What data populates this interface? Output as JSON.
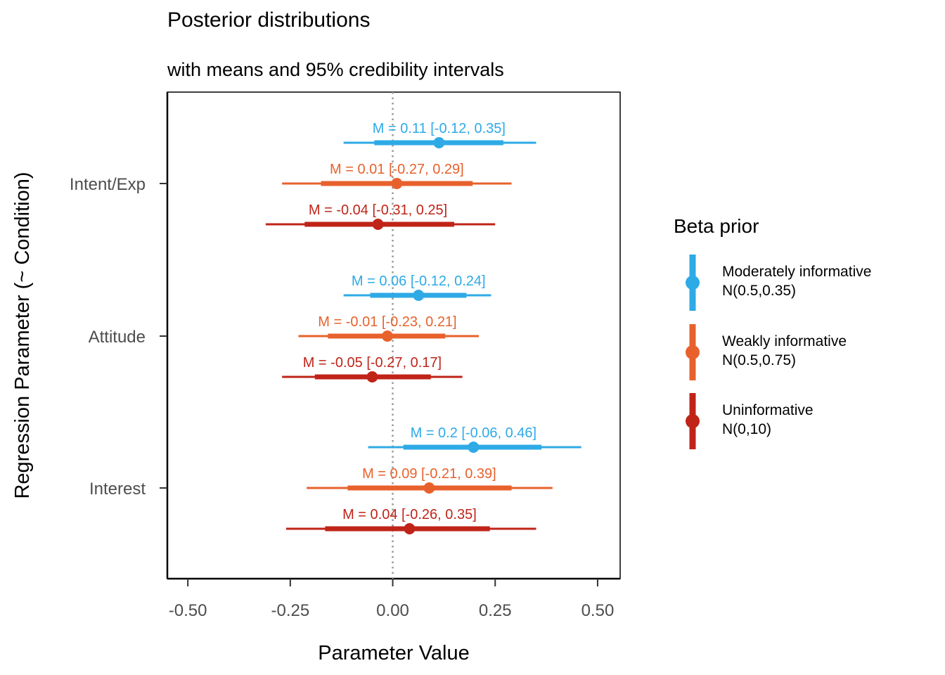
{
  "chart_data": {
    "type": "pointrange",
    "title": "Posterior distributions",
    "subtitle": "with means and 95% credibility intervals",
    "xlabel": "Parameter Value",
    "ylabel": "Regression Parameter (~ Condition)",
    "xlim": [
      -0.55,
      0.555
    ],
    "x_ticks": [
      "-0.50",
      "-0.25",
      "0.00",
      "0.25",
      "0.50"
    ],
    "x_tick_values": [
      -0.5,
      -0.25,
      0,
      0.25,
      0.5
    ],
    "reference_line": {
      "x": 0,
      "style": "dotted"
    },
    "categories": [
      "Intent/Exp",
      "Attitude",
      "Interest"
    ],
    "legend": {
      "title": "Beta prior",
      "position": "right"
    },
    "series": [
      {
        "name": "Moderately informative",
        "name_line2": "N(0.5,0.35)",
        "color": "#2EAAE6",
        "points": [
          {
            "category": "Intent/Exp",
            "mean": 0.113,
            "inner": [
              -0.045,
              0.27
            ],
            "lower": -0.12,
            "upper": 0.35,
            "label": "M = 0.11 [-0.12, 0.35]"
          },
          {
            "category": "Attitude",
            "mean": 0.063,
            "inner": [
              -0.055,
              0.18
            ],
            "lower": -0.12,
            "upper": 0.24,
            "label": "M = 0.06 [-0.12, 0.24]"
          },
          {
            "category": "Interest",
            "mean": 0.197,
            "inner": [
              0.026,
              0.363
            ],
            "lower": -0.06,
            "upper": 0.46,
            "label": "M = 0.2 [-0.06, 0.46]"
          }
        ]
      },
      {
        "name": "Weakly informative",
        "name_line2": "N(0.5,0.75)",
        "color": "#E8612C",
        "points": [
          {
            "category": "Intent/Exp",
            "mean": 0.01,
            "inner": [
              -0.175,
              0.195
            ],
            "lower": -0.27,
            "upper": 0.29,
            "label": "M = 0.01 [-0.27, 0.29]"
          },
          {
            "category": "Attitude",
            "mean": -0.013,
            "inner": [
              -0.158,
              0.128
            ],
            "lower": -0.23,
            "upper": 0.21,
            "label": "M = -0.01 [-0.23, 0.21]"
          },
          {
            "category": "Interest",
            "mean": 0.089,
            "inner": [
              -0.11,
              0.29
            ],
            "lower": -0.21,
            "upper": 0.39,
            "label": "M = 0.09 [-0.21, 0.39]"
          }
        ]
      },
      {
        "name": "Uninformative",
        "name_line2": "N(0,10)",
        "color": "#C02418",
        "points": [
          {
            "category": "Intent/Exp",
            "mean": -0.036,
            "inner": [
              -0.215,
              0.15
            ],
            "lower": -0.31,
            "upper": 0.25,
            "label": "M = -0.04 [-0.31, 0.25]"
          },
          {
            "category": "Attitude",
            "mean": -0.05,
            "inner": [
              -0.19,
              0.093
            ],
            "lower": -0.27,
            "upper": 0.17,
            "label": "M = -0.05 [-0.27, 0.17]"
          },
          {
            "category": "Interest",
            "mean": 0.041,
            "inner": [
              -0.165,
              0.237
            ],
            "lower": -0.26,
            "upper": 0.35,
            "label": "M = 0.04 [-0.26, 0.35]"
          }
        ]
      }
    ]
  }
}
